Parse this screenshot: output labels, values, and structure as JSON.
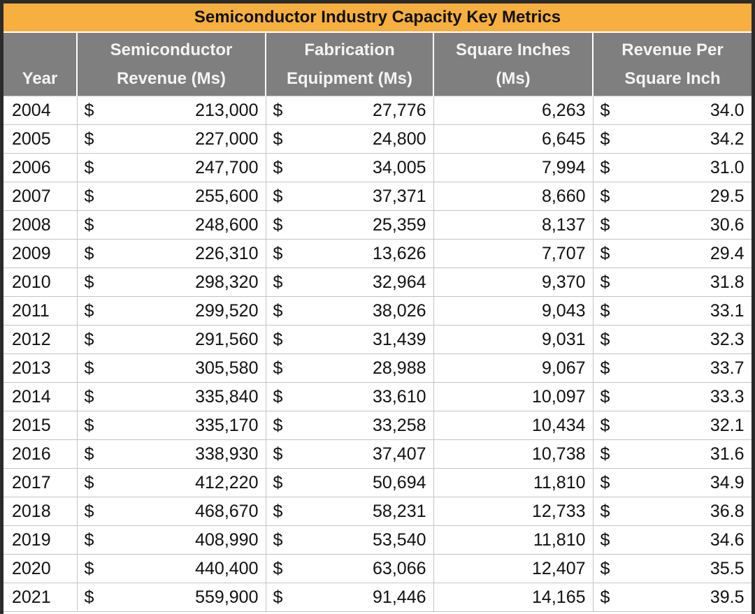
{
  "title": "Semiconductor Industry Capacity Key Metrics",
  "currency": "$",
  "table": {
    "header": [
      "Year",
      "Semiconductor Revenue (Ms)",
      "Fabrication Equipment (Ms)",
      "Square Inches (Ms)",
      "Revenue Per Square Inch"
    ],
    "currency_columns": [
      1,
      2,
      4
    ],
    "rows": [
      [
        "2004",
        "213,000",
        "27,776",
        "6,263",
        "34.0"
      ],
      [
        "2005",
        "227,000",
        "24,800",
        "6,645",
        "34.2"
      ],
      [
        "2006",
        "247,700",
        "34,005",
        "7,994",
        "31.0"
      ],
      [
        "2007",
        "255,600",
        "37,371",
        "8,660",
        "29.5"
      ],
      [
        "2008",
        "248,600",
        "25,359",
        "8,137",
        "30.6"
      ],
      [
        "2009",
        "226,310",
        "13,626",
        "7,707",
        "29.4"
      ],
      [
        "2010",
        "298,320",
        "32,964",
        "9,370",
        "31.8"
      ],
      [
        "2011",
        "299,520",
        "38,026",
        "9,043",
        "33.1"
      ],
      [
        "2012",
        "291,560",
        "31,439",
        "9,031",
        "32.3"
      ],
      [
        "2013",
        "305,580",
        "28,988",
        "9,067",
        "33.7"
      ],
      [
        "2014",
        "335,840",
        "33,610",
        "10,097",
        "33.3"
      ],
      [
        "2015",
        "335,170",
        "33,258",
        "10,434",
        "32.1"
      ],
      [
        "2016",
        "338,930",
        "37,407",
        "10,738",
        "31.6"
      ],
      [
        "2017",
        "412,220",
        "50,694",
        "11,810",
        "34.9"
      ],
      [
        "2018",
        "468,670",
        "58,231",
        "12,733",
        "36.8"
      ],
      [
        "2019",
        "408,990",
        "53,540",
        "11,810",
        "34.6"
      ],
      [
        "2020",
        "440,400",
        "63,066",
        "12,407",
        "35.5"
      ],
      [
        "2021",
        "559,900",
        "91,446",
        "14,165",
        "39.5"
      ]
    ]
  }
}
